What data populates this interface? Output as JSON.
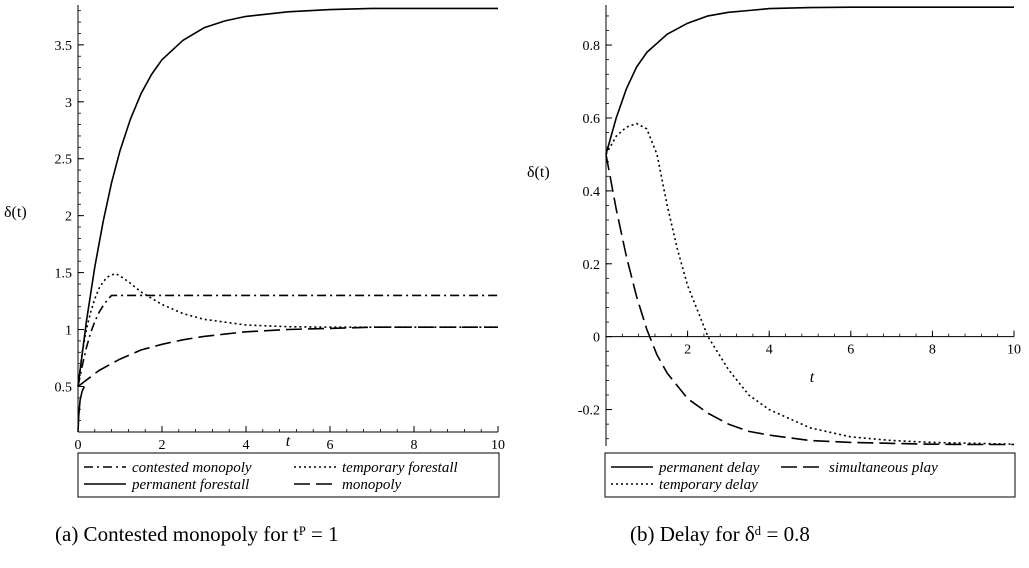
{
  "chart_data": [
    {
      "type": "line",
      "caption": "(a) Contested monopoly for tᴾ = 1",
      "xlabel": "t",
      "ylabel": "δ(t)",
      "xlim": [
        0,
        10
      ],
      "ylim": [
        0.1,
        3.85
      ],
      "xticks": [
        0,
        2,
        4,
        6,
        8,
        10
      ],
      "yticks": [
        0.5,
        1,
        1.5,
        2,
        2.5,
        3,
        3.5
      ],
      "grid": false,
      "legend_position": "bottom",
      "series": [
        {
          "name": "contested monopoly",
          "style": "dashdot",
          "x": [
            0,
            0.1,
            0.2,
            0.3,
            0.4,
            0.5,
            0.6,
            0.7,
            0.8,
            1,
            2,
            4,
            6,
            8,
            10
          ],
          "y": [
            0.5,
            0.68,
            0.84,
            0.97,
            1.07,
            1.15,
            1.21,
            1.26,
            1.3,
            1.3,
            1.3,
            1.3,
            1.3,
            1.3,
            1.3
          ]
        },
        {
          "name": "temporary forestall",
          "style": "dotted",
          "x": [
            0,
            0.1,
            0.2,
            0.3,
            0.4,
            0.5,
            0.6,
            0.7,
            0.8,
            0.9,
            1,
            1.2,
            1.5,
            2,
            2.5,
            3,
            4,
            5,
            6,
            8,
            10
          ],
          "y": [
            0.5,
            0.8,
            1.0,
            1.15,
            1.27,
            1.36,
            1.42,
            1.46,
            1.48,
            1.49,
            1.47,
            1.42,
            1.33,
            1.22,
            1.14,
            1.09,
            1.04,
            1.025,
            1.02,
            1.02,
            1.02
          ]
        },
        {
          "name": "permanent forestall",
          "style": "solid",
          "x": [
            0,
            0.2,
            0.4,
            0.6,
            0.8,
            1,
            1.25,
            1.5,
            1.75,
            2,
            2.5,
            3,
            3.5,
            4,
            5,
            6,
            7,
            8,
            9,
            10
          ],
          "y": [
            0.5,
            1.07,
            1.55,
            1.95,
            2.29,
            2.57,
            2.85,
            3.07,
            3.24,
            3.37,
            3.54,
            3.65,
            3.71,
            3.75,
            3.79,
            3.81,
            3.82,
            3.82,
            3.82,
            3.82
          ]
        },
        {
          "name": "monopoly",
          "style": "dashed",
          "x": [
            0,
            0.5,
            1,
            1.5,
            2,
            2.5,
            3,
            3.5,
            4,
            5,
            6,
            7,
            8,
            9,
            10
          ],
          "y": [
            0.5,
            0.64,
            0.74,
            0.82,
            0.87,
            0.91,
            0.94,
            0.96,
            0.98,
            1.0,
            1.01,
            1.02,
            1.02,
            1.02,
            1.02
          ]
        }
      ],
      "extra_series": [
        {
          "style": "solid",
          "x": [
            0,
            0.02,
            0.05,
            0.1,
            0.15
          ],
          "y": [
            0.1,
            0.25,
            0.38,
            0.46,
            0.5
          ]
        }
      ],
      "legend_rows": [
        [
          "contested monopoly",
          "temporary forestall"
        ],
        [
          "permanent forestall",
          "monopoly"
        ]
      ]
    },
    {
      "type": "line",
      "caption": "(b) Delay for δᵈ = 0.8",
      "xlabel": "t",
      "ylabel": "δ(t)",
      "xlim": [
        0,
        10
      ],
      "ylim": [
        -0.3,
        0.91
      ],
      "xticks": [
        2,
        4,
        6,
        8,
        10
      ],
      "yticks": [
        -0.2,
        0,
        0.2,
        0.4,
        0.6,
        0.8
      ],
      "grid": false,
      "legend_position": "bottom",
      "series": [
        {
          "name": "permanent delay",
          "style": "solid",
          "x": [
            0,
            0.25,
            0.5,
            0.75,
            1,
            1.5,
            2,
            2.5,
            3,
            3.5,
            4,
            5,
            6,
            7,
            8,
            10
          ],
          "y": [
            0.5,
            0.6,
            0.68,
            0.74,
            0.78,
            0.83,
            0.86,
            0.88,
            0.89,
            0.895,
            0.9,
            0.903,
            0.904,
            0.904,
            0.904,
            0.904
          ]
        },
        {
          "name": "simultaneous play",
          "style": "dashed",
          "x": [
            0,
            0.25,
            0.5,
            0.75,
            1,
            1.25,
            1.5,
            2,
            2.5,
            3,
            3.5,
            4,
            5,
            6,
            7,
            8,
            9,
            10
          ],
          "y": [
            0.5,
            0.35,
            0.22,
            0.11,
            0.02,
            -0.05,
            -0.1,
            -0.17,
            -0.21,
            -0.24,
            -0.26,
            -0.27,
            -0.285,
            -0.29,
            -0.293,
            -0.295,
            -0.296,
            -0.296
          ]
        },
        {
          "name": "temporary delay",
          "style": "dotted",
          "x": [
            0,
            0.25,
            0.5,
            0.75,
            1,
            1.25,
            1.5,
            1.75,
            2,
            2.5,
            3,
            3.5,
            4,
            5,
            6,
            7,
            8,
            10
          ],
          "y": [
            0.5,
            0.55,
            0.575,
            0.585,
            0.57,
            0.5,
            0.36,
            0.24,
            0.14,
            0.0,
            -0.09,
            -0.16,
            -0.2,
            -0.25,
            -0.275,
            -0.285,
            -0.29,
            -0.295
          ]
        }
      ],
      "legend_rows": [
        [
          "permanent delay",
          "simultaneous play"
        ],
        [
          "temporary delay"
        ]
      ]
    }
  ]
}
